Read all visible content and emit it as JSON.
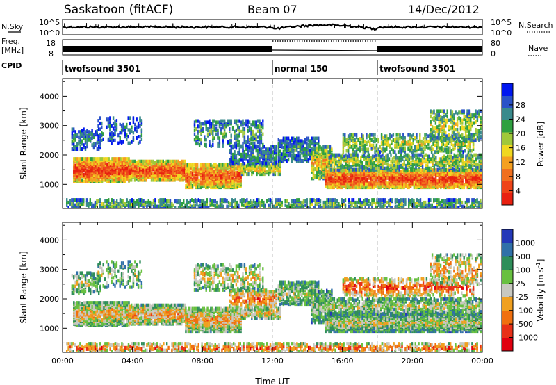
{
  "header": {
    "station": "Saskatoon (fitACF)",
    "beam": "Beam 07",
    "date": "14/Dec/2012"
  },
  "side_labels": {
    "nsky": "N.Sky",
    "nsearch": "N.Search",
    "freq_line1": "Freq.",
    "freq_line2": "[MHz]",
    "nave": "Nave",
    "cpid": "CPID"
  },
  "noise_axis": {
    "top": "10^5",
    "bottom": "10^0"
  },
  "freq_axis": {
    "left": [
      "18",
      "8"
    ],
    "right": [
      "80",
      "0"
    ]
  },
  "cpid_segments": [
    {
      "label": "twofsound 3501",
      "start_hour": 0,
      "end_hour": 12
    },
    {
      "label": "normal 150",
      "start_hour": 12,
      "end_hour": 18
    },
    {
      "label": "twofsound 3501",
      "start_hour": 18,
      "end_hour": 24
    }
  ],
  "chart_data": [
    {
      "type": "heatmap",
      "name": "power-panel",
      "ylabel": "Slant Range [km]",
      "xlabel": "",
      "xlim": [
        0,
        24
      ],
      "ylim": [
        180,
        4600
      ],
      "yticks": [
        "1000",
        "2000",
        "3000",
        "4000"
      ],
      "xticks": [
        "00:00",
        "04:00",
        "08:00",
        "12:00",
        "16:00",
        "20:00",
        "00:00"
      ],
      "colorbar": {
        "label": "Power [dB]",
        "ticks": [
          "4",
          "8",
          "12",
          "16",
          "20",
          "24",
          "28"
        ],
        "colors": [
          "#0016f0",
          "#2a52c8",
          "#3a8a8c",
          "#2fa040",
          "#a0c83a",
          "#f0d820",
          "#f5a020",
          "#f07020",
          "#ee4418",
          "#e82010"
        ]
      }
    },
    {
      "type": "heatmap",
      "name": "velocity-panel",
      "ylabel": "Slant Range [km]",
      "xlabel": "Time UT",
      "xlim": [
        0,
        24
      ],
      "ylim": [
        180,
        4600
      ],
      "yticks": [
        "1000",
        "2000",
        "3000",
        "4000"
      ],
      "xticks": [
        "00:00",
        "04:00",
        "08:00",
        "12:00",
        "16:00",
        "20:00",
        "00:00"
      ],
      "colorbar": {
        "label": "Velocity [m s",
        "label_sup": "-1",
        "label_end": "]",
        "ticks": [
          "1000",
          "500",
          "100",
          "25",
          "-25",
          "-100",
          "-500",
          "-1000"
        ],
        "colors": [
          "#2438b8",
          "#3070a8",
          "#2f8e5a",
          "#68c040",
          "#c8c8c0",
          "#f0a020",
          "#f07010",
          "#e83018",
          "#e00010"
        ]
      }
    }
  ]
}
